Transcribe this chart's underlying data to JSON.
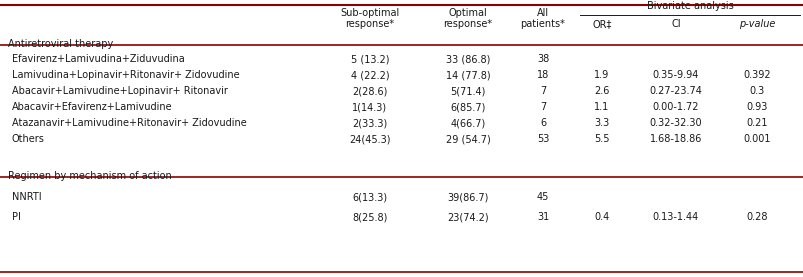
{
  "section1_label": "Antiretroviral therapy",
  "section2_label": "Regimen by mechanism of action",
  "rows": [
    {
      "label": "Efavirenz+Lamivudina+Ziduvudina",
      "sub_optimal": "5 (13.2)",
      "optimal": "33 (86.8)",
      "all": "38",
      "OR": "",
      "CI": "",
      "pvalue": ""
    },
    {
      "label": "Lamivudina+Lopinavir+Ritonavir+ Zidovudine",
      "sub_optimal": "4 (22.2)",
      "optimal": "14 (77.8)",
      "all": "18",
      "OR": "1.9",
      "CI": "0.35-9.94",
      "pvalue": "0.392"
    },
    {
      "label": "Abacavir+Lamivudine+Lopinavir+ Ritonavir",
      "sub_optimal": "2(28.6)",
      "optimal": "5(71.4)",
      "all": "7",
      "OR": "2.6",
      "CI": "0.27-23.74",
      "pvalue": "0.3"
    },
    {
      "label": "Abacavir+Efavirenz+Lamivudine",
      "sub_optimal": "1(14.3)",
      "optimal": "6(85.7)",
      "all": "7",
      "OR": "1.1",
      "CI": "0.00-1.72",
      "pvalue": "0.93"
    },
    {
      "label": "Atazanavir+Lamivudine+Ritonavir+ Zidovudine",
      "sub_optimal": "2(33.3)",
      "optimal": "4(66.7)",
      "all": "6",
      "OR": "3.3",
      "CI": "0.32-32.30",
      "pvalue": "0.21"
    },
    {
      "label": "Others",
      "sub_optimal": "24(45.3)",
      "optimal": "29 (54.7)",
      "all": "53",
      "OR": "5.5",
      "CI": "1.68-18.86",
      "pvalue": "0.001"
    }
  ],
  "rows2": [
    {
      "label": "NNRTI",
      "sub_optimal": "6(13.3)",
      "optimal": "39(86.7)",
      "all": "45",
      "OR": "",
      "CI": "",
      "pvalue": ""
    },
    {
      "label": "PI",
      "sub_optimal": "8(25.8)",
      "optimal": "23(74.2)",
      "all": "31",
      "OR": "0.4",
      "CI": "0.13-1.44",
      "pvalue": "0.28"
    }
  ],
  "bg_color": "#ffffff",
  "line_color": "#8B0000",
  "text_color": "#1a1a1a",
  "font_size": 7.0,
  "header_font_size": 7.0
}
